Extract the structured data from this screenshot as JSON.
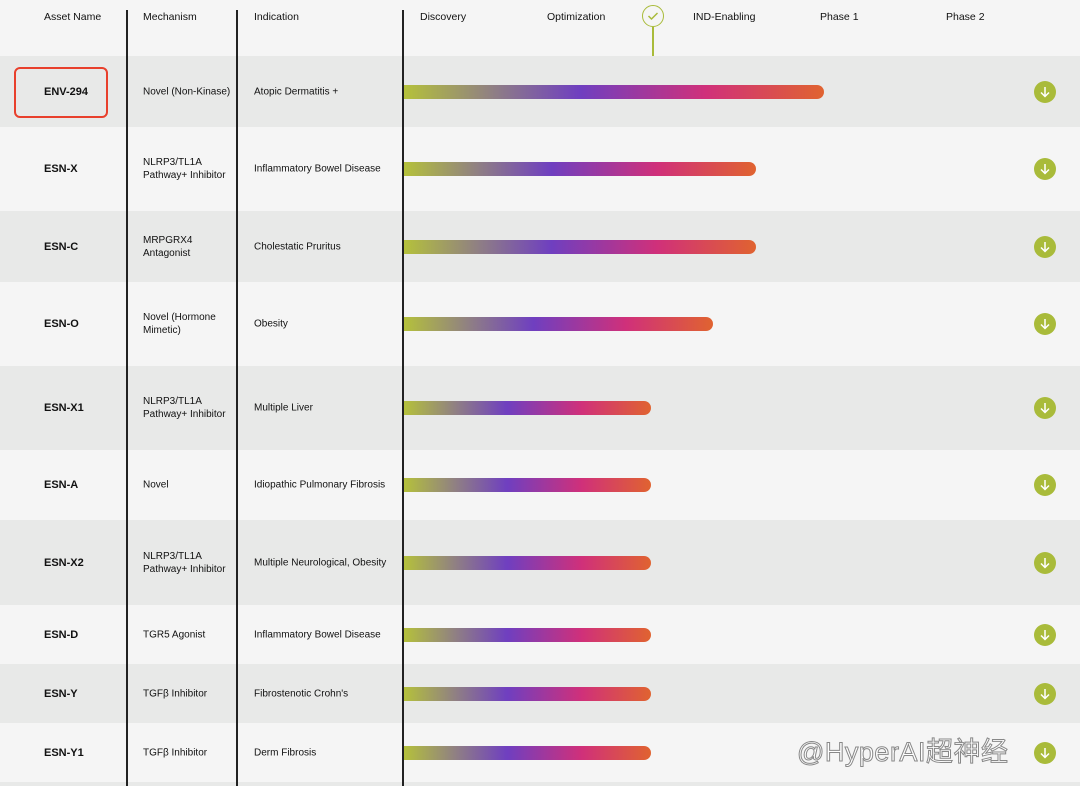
{
  "header": {
    "asset_name": "Asset Name",
    "mechanism": "Mechanism",
    "indication": "Indication",
    "stages": [
      "Discovery",
      "Optimization",
      "IND-Enabling",
      "Phase 1",
      "Phase 2"
    ]
  },
  "colors": {
    "accent": "#a9bb3a",
    "highlight": "#e8402c",
    "gradient": [
      "#b5c23a",
      "#8e7d86",
      "#6f3fc0",
      "#d0307a",
      "#e06330"
    ]
  },
  "rows": [
    {
      "name": "ENV-294",
      "mechanism": "Novel (Non-Kinase)",
      "indication": "Atopic Dermatitis +",
      "progress": 0.622,
      "highlighted": true
    },
    {
      "name": "ESN-X",
      "mechanism": "NLRP3/TL1A Pathway+ Inhibitor",
      "indication": "Inflammatory Bowel Disease",
      "progress": 0.521
    },
    {
      "name": "ESN-C",
      "mechanism": "MRPGRX4 Antagonist",
      "indication": "Cholestatic Pruritus",
      "progress": 0.521
    },
    {
      "name": "ESN-O",
      "mechanism": "Novel (Hormone Mimetic)",
      "indication": "Obesity",
      "progress": 0.458
    },
    {
      "name": "ESN-X1",
      "mechanism": "NLRP3/TL1A Pathway+ Inhibitor",
      "indication": "Multiple Liver",
      "progress": 0.366
    },
    {
      "name": "ESN-A",
      "mechanism": "Novel",
      "indication": "Idiopathic Pulmonary Fibrosis",
      "progress": 0.366
    },
    {
      "name": "ESN-X2",
      "mechanism": "NLRP3/TL1A Pathway+ Inhibitor",
      "indication": "Multiple Neurological, Obesity",
      "progress": 0.366
    },
    {
      "name": "ESN-D",
      "mechanism": "TGR5 Agonist",
      "indication": "Inflammatory Bowel Disease",
      "progress": 0.366
    },
    {
      "name": "ESN-Y",
      "mechanism": "TGFβ Inhibitor",
      "indication": "Fibrostenotic Crohn's",
      "progress": 0.366
    },
    {
      "name": "ESN-Y1",
      "mechanism": "TGFβ Inhibitor",
      "indication": "Derm Fibrosis",
      "progress": 0.366
    }
  ],
  "watermark": "@HyperAI超神经"
}
